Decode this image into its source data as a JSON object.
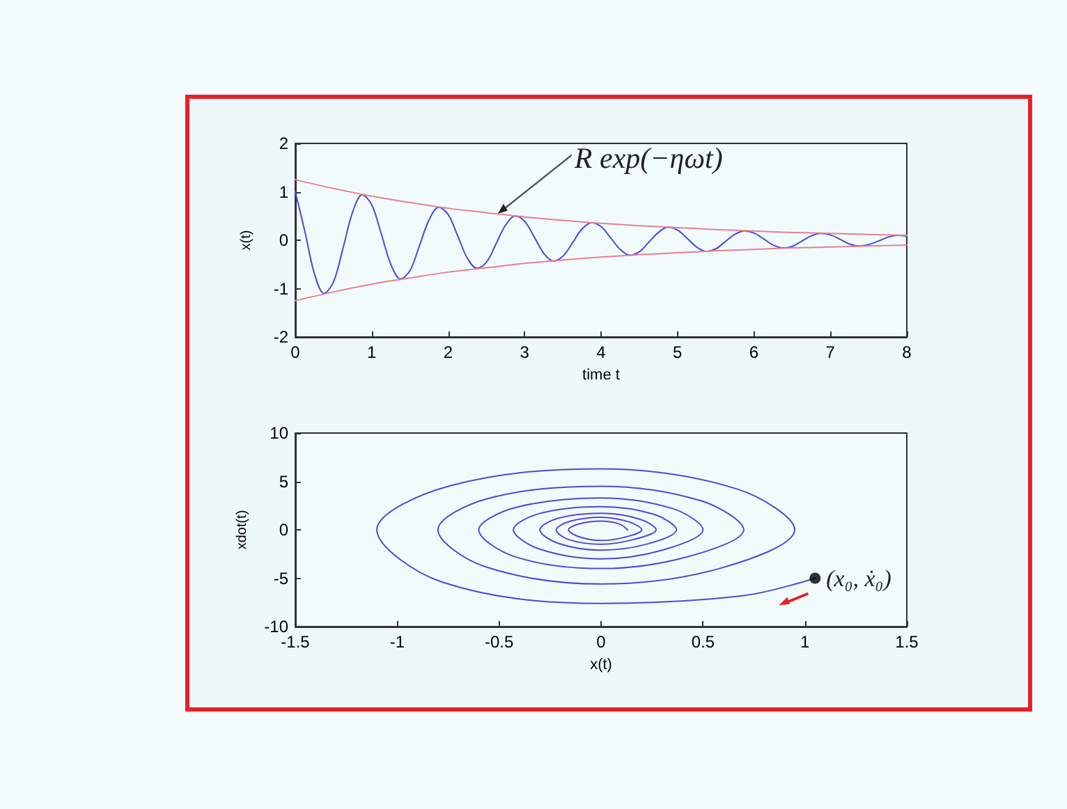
{
  "chart_data": [
    {
      "type": "line",
      "xlabel": "time t",
      "ylabel": "x(t)",
      "xlim": [
        0,
        8
      ],
      "xticks": [
        0,
        1,
        2,
        3,
        4,
        5,
        6,
        7,
        8
      ],
      "ylim": [
        -2,
        2
      ],
      "yticks": [
        -2,
        -1,
        0,
        1,
        2
      ],
      "marker": "none",
      "grid": false,
      "series": [
        {
          "color": "#4a4ad8",
          "x": [
            0,
            0.125,
            0.25,
            0.375,
            0.5,
            0.625,
            0.75,
            0.875,
            1,
            1.125,
            1.25,
            1.375,
            1.5,
            1.625,
            1.75,
            1.875,
            2,
            2.125,
            2.25,
            2.375,
            2.5,
            2.625,
            2.75,
            2.875,
            3,
            3.125,
            3.25,
            3.375,
            3.5,
            3.625,
            3.75,
            3.875,
            4,
            4.125,
            4.25,
            4.375,
            4.5,
            4.625,
            4.75,
            4.875,
            5,
            5.125,
            5.25,
            5.375,
            5.5,
            5.625,
            5.75,
            5.875,
            6,
            6.125,
            6.25,
            6.375,
            6.5,
            6.625,
            6.75,
            6.875,
            7,
            7.125,
            7.25,
            7.375,
            7.5,
            7.625,
            7.75,
            7.875,
            8
          ],
          "values": [
            1.0,
            0.18,
            -0.69,
            -1.1,
            -0.86,
            -0.16,
            0.58,
            0.94,
            0.73,
            0.13,
            -0.5,
            -0.8,
            -0.63,
            -0.11,
            0.42,
            0.68,
            0.53,
            0.09,
            -0.37,
            -0.58,
            -0.46,
            -0.08,
            0.31,
            0.5,
            0.39,
            0.07,
            -0.27,
            -0.43,
            -0.33,
            -0.06,
            0.23,
            0.36,
            0.28,
            0.05,
            -0.19,
            -0.31,
            -0.24,
            -0.04,
            0.16,
            0.27,
            0.21,
            0.04,
            -0.14,
            -0.23,
            -0.18,
            -0.03,
            0.12,
            0.19,
            0.15,
            0.03,
            -0.1,
            -0.16,
            -0.13,
            -0.02,
            0.09,
            0.14,
            0.11,
            0.02,
            -0.08,
            -0.12,
            -0.09,
            -0.02,
            0.06,
            0.1,
            0.08
          ]
        },
        {
          "color": "#e8808e",
          "x": [
            0,
            0.5,
            1,
            1.5,
            2,
            2.5,
            3,
            3.5,
            4,
            4.5,
            5,
            5.5,
            6,
            6.5,
            7,
            7.5,
            8
          ],
          "values": [
            1.25,
            1.07,
            0.91,
            0.78,
            0.66,
            0.57,
            0.48,
            0.41,
            0.35,
            0.3,
            0.26,
            0.22,
            0.19,
            0.16,
            0.14,
            0.12,
            0.1
          ]
        },
        {
          "color": "#e8808e",
          "x": [
            0,
            0.5,
            1,
            1.5,
            2,
            2.5,
            3,
            3.5,
            4,
            4.5,
            5,
            5.5,
            6,
            6.5,
            7,
            7.5,
            8
          ],
          "values": [
            -1.25,
            -1.07,
            -0.91,
            -0.78,
            -0.66,
            -0.57,
            -0.48,
            -0.41,
            -0.35,
            -0.3,
            -0.26,
            -0.22,
            -0.19,
            -0.16,
            -0.14,
            -0.12,
            -0.1
          ]
        }
      ],
      "annotations": [
        {
          "text": "R exp(−ηωt)",
          "x": 2.65,
          "y": 0.55
        }
      ]
    },
    {
      "type": "line",
      "xlabel": "x(t)",
      "ylabel": "xdot(t)",
      "xlim": [
        -1.5,
        1.5
      ],
      "xticks": [
        -1.5,
        -1,
        -0.5,
        0,
        0.5,
        1,
        1.5
      ],
      "ylim": [
        -10,
        10
      ],
      "yticks": [
        -10,
        -5,
        0,
        5,
        10
      ],
      "marker": "none",
      "grid": false,
      "series": [
        {
          "color": "#4a4ad8",
          "x": [
            1.05,
            0.7,
            0,
            -0.78,
            -1.1,
            -0.75,
            0,
            0.67,
            0.95,
            0.58,
            0,
            -0.57,
            -0.8,
            -0.56,
            0,
            0.49,
            0.7,
            0.42,
            0,
            -0.42,
            -0.6,
            -0.42,
            0,
            0.35,
            0.5,
            0.3,
            0,
            -0.3,
            -0.43,
            -0.3,
            0,
            0.26,
            0.37,
            0.22,
            0,
            -0.21,
            -0.3,
            -0.21,
            0,
            0.19,
            0.27,
            0.16,
            0,
            -0.16,
            -0.22,
            -0.15,
            0,
            0.14,
            0.2,
            0.11,
            0,
            -0.11,
            -0.16,
            -0.11,
            0,
            0.09,
            0.13
          ],
          "values": [
            -5,
            -6.8,
            -7.6,
            -5.4,
            0,
            4.5,
            6.3,
            4.2,
            0,
            -4,
            -5.6,
            -3.8,
            0,
            3.2,
            4.5,
            3,
            0,
            -2.8,
            -4,
            -2.8,
            0,
            2.3,
            3.3,
            2.2,
            0,
            -2.1,
            -3,
            -2,
            0,
            1.7,
            2.4,
            1.6,
            0,
            -1.5,
            -2.1,
            -1.4,
            0,
            1.2,
            1.7,
            1.1,
            0,
            -1.0,
            -1.5,
            -1,
            0,
            0.9,
            1.3,
            0.8,
            0,
            -0.8,
            -1.1,
            -0.7,
            0,
            0.6,
            0.9,
            0.6,
            0
          ]
        },
        {
          "type": "scatter",
          "color": "#000000",
          "marker": "circle",
          "x": [
            1.05
          ],
          "values": [
            -5
          ]
        }
      ],
      "annotations": [
        {
          "text": "(x₀, ẋ₀)",
          "x": 1.05,
          "y": -5
        }
      ]
    }
  ]
}
